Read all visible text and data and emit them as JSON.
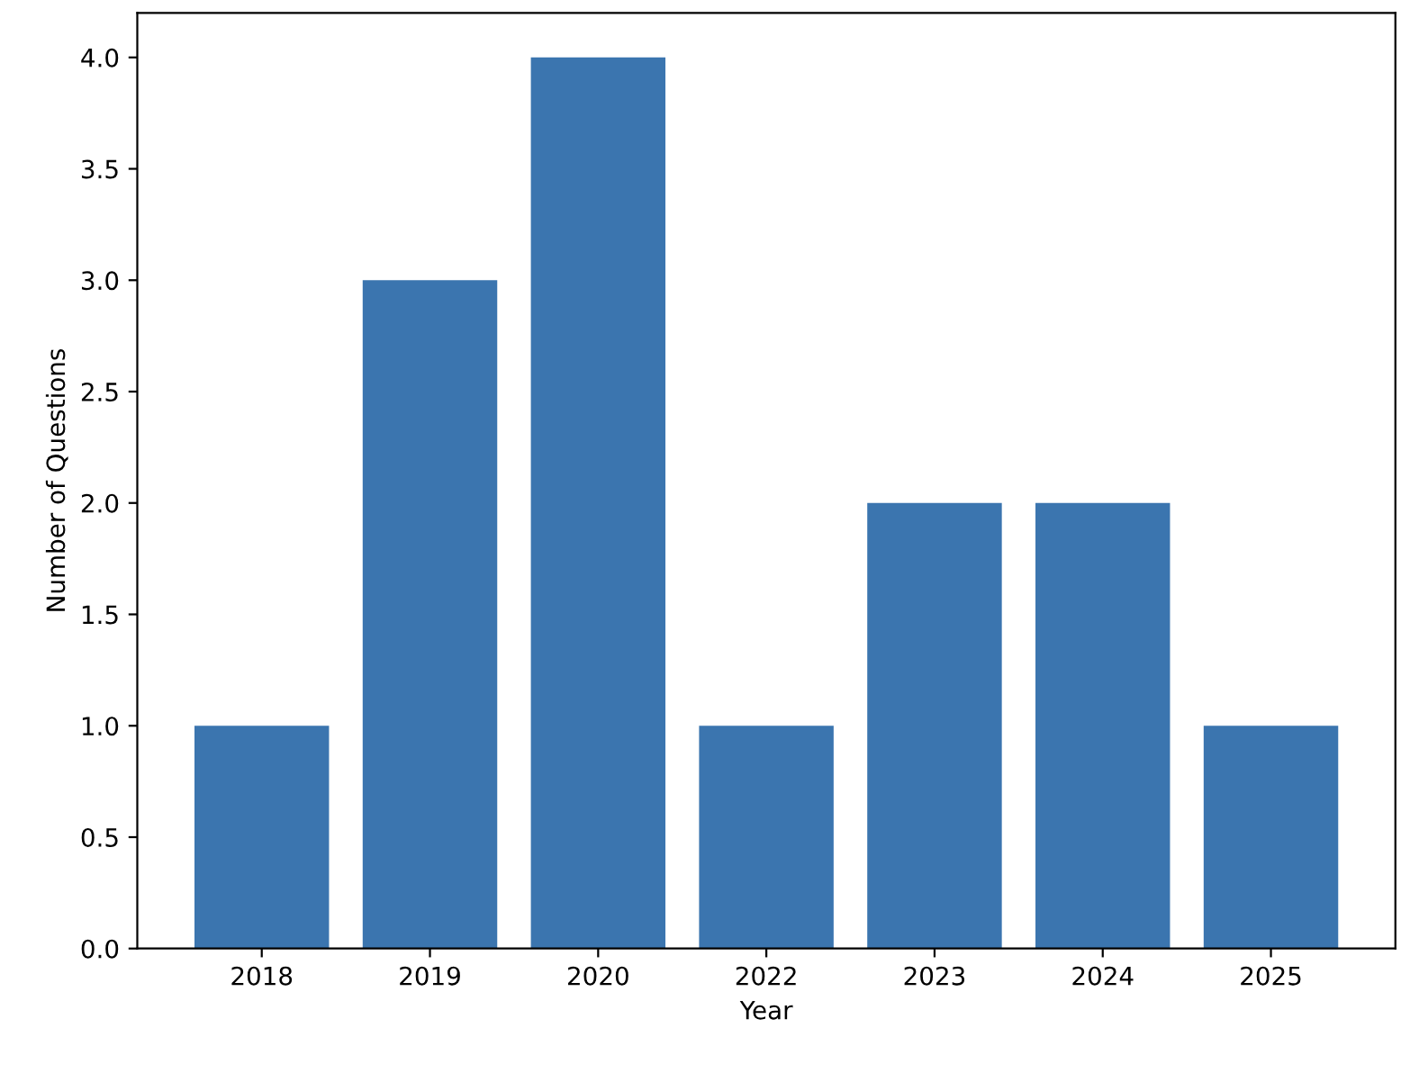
{
  "chart_data": {
    "type": "bar",
    "xlabel": "Year",
    "ylabel": "Number of Questions",
    "categories": [
      "2018",
      "2019",
      "2020",
      "2022",
      "2023",
      "2024",
      "2025"
    ],
    "values": [
      1,
      3,
      4,
      1,
      2,
      2,
      1
    ],
    "color": "#3b75af",
    "ylim": [
      0,
      4.2
    ],
    "yticks": [
      {
        "value": 0,
        "label": "0.0"
      },
      {
        "value": 0.5,
        "label": "0.5"
      },
      {
        "value": 1,
        "label": "1.0"
      },
      {
        "value": 1.5,
        "label": "1.5"
      },
      {
        "value": 2,
        "label": "2.0"
      },
      {
        "value": 2.5,
        "label": "2.5"
      },
      {
        "value": 3,
        "label": "3.0"
      },
      {
        "value": 3.5,
        "label": "3.5"
      },
      {
        "value": 4,
        "label": "4.0"
      }
    ],
    "grid": false
  }
}
